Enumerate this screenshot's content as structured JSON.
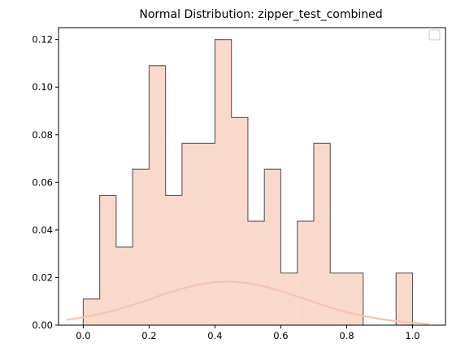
{
  "chart_data": {
    "type": "bar",
    "title": "Normal Distribution: zipper_test_combined",
    "xlabel": "",
    "ylabel": "",
    "xlim": [
      -0.075,
      1.1
    ],
    "ylim": [
      0,
      0.125
    ],
    "grid": false,
    "legend": "top-right (empty)",
    "bin_edges": [
      0.0,
      0.05,
      0.1,
      0.15,
      0.2,
      0.25,
      0.3,
      0.35,
      0.4,
      0.45,
      0.5,
      0.55,
      0.6,
      0.65,
      0.7,
      0.75,
      0.8,
      0.85,
      0.9,
      0.95,
      1.0
    ],
    "values": [
      0.011,
      0.0545,
      0.0328,
      0.0655,
      0.109,
      0.0545,
      0.0764,
      0.0764,
      0.12,
      0.0873,
      0.0437,
      0.0655,
      0.0219,
      0.0437,
      0.0764,
      0.0219,
      0.0219,
      0.0,
      0.0,
      0.0219
    ],
    "curve": {
      "x": [
        -0.05,
        0.0,
        0.05,
        0.1,
        0.15,
        0.2,
        0.25,
        0.3,
        0.35,
        0.4,
        0.45,
        0.5,
        0.55,
        0.6,
        0.65,
        0.7,
        0.75,
        0.8,
        0.85,
        0.9,
        0.95,
        1.0,
        1.05
      ],
      "y": [
        0.0022,
        0.0033,
        0.0047,
        0.0064,
        0.0085,
        0.0108,
        0.0132,
        0.0154,
        0.0171,
        0.0181,
        0.0183,
        0.0177,
        0.0163,
        0.0143,
        0.012,
        0.0097,
        0.0074,
        0.0055,
        0.0039,
        0.0026,
        0.0017,
        0.001,
        0.0006
      ]
    },
    "xticks": [
      "0.0",
      "0.2",
      "0.4",
      "0.6",
      "0.8",
      "1.0"
    ],
    "xtick_values": [
      0.0,
      0.2,
      0.4,
      0.6,
      0.8,
      1.0
    ],
    "yticks": [
      "0.00",
      "0.02",
      "0.04",
      "0.06",
      "0.08",
      "0.10",
      "0.12"
    ],
    "ytick_values": [
      0.0,
      0.02,
      0.04,
      0.06,
      0.08,
      0.1,
      0.12
    ],
    "colors": {
      "fill": "#f9d9cc",
      "edge": "#5a5a5a",
      "curve": "#f5c4ad"
    }
  }
}
